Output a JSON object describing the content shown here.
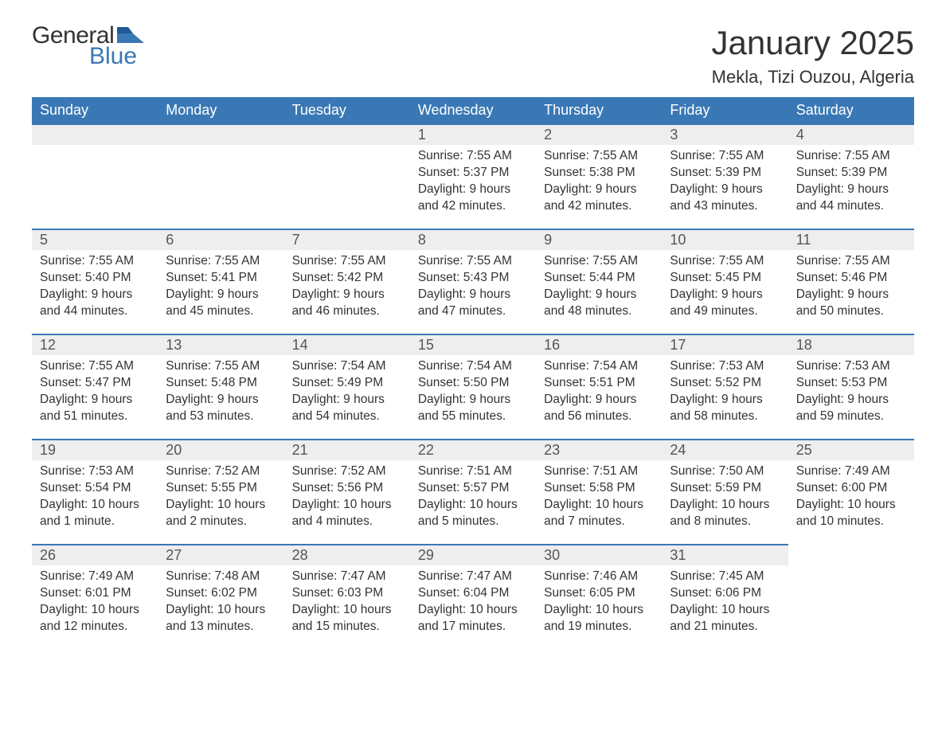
{
  "colors": {
    "header_bg": "#3a78b5",
    "header_text": "#ffffff",
    "daynum_bg": "#eeeeee",
    "row_border": "#3a78b5",
    "body_text": "#333333",
    "page_bg": "#ffffff",
    "logo_blue": "#3a78b5"
  },
  "typography": {
    "month_title_size_pt": 42,
    "location_size_pt": 22,
    "weekday_header_size_pt": 18,
    "daynum_size_pt": 18,
    "body_size_pt": 15.5
  },
  "logo": {
    "general": "General",
    "blue": "Blue"
  },
  "title": "January 2025",
  "location": "Mekla, Tizi Ouzou, Algeria",
  "weekdays": [
    "Sunday",
    "Monday",
    "Tuesday",
    "Wednesday",
    "Thursday",
    "Friday",
    "Saturday"
  ],
  "layout": {
    "columns": 7,
    "rows": 5,
    "first_day_column_index": 3
  },
  "weeks": [
    [
      null,
      null,
      null,
      {
        "n": "1",
        "sr": "Sunrise: 7:55 AM",
        "ss": "Sunset: 5:37 PM",
        "dl": "Daylight: 9 hours and 42 minutes."
      },
      {
        "n": "2",
        "sr": "Sunrise: 7:55 AM",
        "ss": "Sunset: 5:38 PM",
        "dl": "Daylight: 9 hours and 42 minutes."
      },
      {
        "n": "3",
        "sr": "Sunrise: 7:55 AM",
        "ss": "Sunset: 5:39 PM",
        "dl": "Daylight: 9 hours and 43 minutes."
      },
      {
        "n": "4",
        "sr": "Sunrise: 7:55 AM",
        "ss": "Sunset: 5:39 PM",
        "dl": "Daylight: 9 hours and 44 minutes."
      }
    ],
    [
      {
        "n": "5",
        "sr": "Sunrise: 7:55 AM",
        "ss": "Sunset: 5:40 PM",
        "dl": "Daylight: 9 hours and 44 minutes."
      },
      {
        "n": "6",
        "sr": "Sunrise: 7:55 AM",
        "ss": "Sunset: 5:41 PM",
        "dl": "Daylight: 9 hours and 45 minutes."
      },
      {
        "n": "7",
        "sr": "Sunrise: 7:55 AM",
        "ss": "Sunset: 5:42 PM",
        "dl": "Daylight: 9 hours and 46 minutes."
      },
      {
        "n": "8",
        "sr": "Sunrise: 7:55 AM",
        "ss": "Sunset: 5:43 PM",
        "dl": "Daylight: 9 hours and 47 minutes."
      },
      {
        "n": "9",
        "sr": "Sunrise: 7:55 AM",
        "ss": "Sunset: 5:44 PM",
        "dl": "Daylight: 9 hours and 48 minutes."
      },
      {
        "n": "10",
        "sr": "Sunrise: 7:55 AM",
        "ss": "Sunset: 5:45 PM",
        "dl": "Daylight: 9 hours and 49 minutes."
      },
      {
        "n": "11",
        "sr": "Sunrise: 7:55 AM",
        "ss": "Sunset: 5:46 PM",
        "dl": "Daylight: 9 hours and 50 minutes."
      }
    ],
    [
      {
        "n": "12",
        "sr": "Sunrise: 7:55 AM",
        "ss": "Sunset: 5:47 PM",
        "dl": "Daylight: 9 hours and 51 minutes."
      },
      {
        "n": "13",
        "sr": "Sunrise: 7:55 AM",
        "ss": "Sunset: 5:48 PM",
        "dl": "Daylight: 9 hours and 53 minutes."
      },
      {
        "n": "14",
        "sr": "Sunrise: 7:54 AM",
        "ss": "Sunset: 5:49 PM",
        "dl": "Daylight: 9 hours and 54 minutes."
      },
      {
        "n": "15",
        "sr": "Sunrise: 7:54 AM",
        "ss": "Sunset: 5:50 PM",
        "dl": "Daylight: 9 hours and 55 minutes."
      },
      {
        "n": "16",
        "sr": "Sunrise: 7:54 AM",
        "ss": "Sunset: 5:51 PM",
        "dl": "Daylight: 9 hours and 56 minutes."
      },
      {
        "n": "17",
        "sr": "Sunrise: 7:53 AM",
        "ss": "Sunset: 5:52 PM",
        "dl": "Daylight: 9 hours and 58 minutes."
      },
      {
        "n": "18",
        "sr": "Sunrise: 7:53 AM",
        "ss": "Sunset: 5:53 PM",
        "dl": "Daylight: 9 hours and 59 minutes."
      }
    ],
    [
      {
        "n": "19",
        "sr": "Sunrise: 7:53 AM",
        "ss": "Sunset: 5:54 PM",
        "dl": "Daylight: 10 hours and 1 minute."
      },
      {
        "n": "20",
        "sr": "Sunrise: 7:52 AM",
        "ss": "Sunset: 5:55 PM",
        "dl": "Daylight: 10 hours and 2 minutes."
      },
      {
        "n": "21",
        "sr": "Sunrise: 7:52 AM",
        "ss": "Sunset: 5:56 PM",
        "dl": "Daylight: 10 hours and 4 minutes."
      },
      {
        "n": "22",
        "sr": "Sunrise: 7:51 AM",
        "ss": "Sunset: 5:57 PM",
        "dl": "Daylight: 10 hours and 5 minutes."
      },
      {
        "n": "23",
        "sr": "Sunrise: 7:51 AM",
        "ss": "Sunset: 5:58 PM",
        "dl": "Daylight: 10 hours and 7 minutes."
      },
      {
        "n": "24",
        "sr": "Sunrise: 7:50 AM",
        "ss": "Sunset: 5:59 PM",
        "dl": "Daylight: 10 hours and 8 minutes."
      },
      {
        "n": "25",
        "sr": "Sunrise: 7:49 AM",
        "ss": "Sunset: 6:00 PM",
        "dl": "Daylight: 10 hours and 10 minutes."
      }
    ],
    [
      {
        "n": "26",
        "sr": "Sunrise: 7:49 AM",
        "ss": "Sunset: 6:01 PM",
        "dl": "Daylight: 10 hours and 12 minutes."
      },
      {
        "n": "27",
        "sr": "Sunrise: 7:48 AM",
        "ss": "Sunset: 6:02 PM",
        "dl": "Daylight: 10 hours and 13 minutes."
      },
      {
        "n": "28",
        "sr": "Sunrise: 7:47 AM",
        "ss": "Sunset: 6:03 PM",
        "dl": "Daylight: 10 hours and 15 minutes."
      },
      {
        "n": "29",
        "sr": "Sunrise: 7:47 AM",
        "ss": "Sunset: 6:04 PM",
        "dl": "Daylight: 10 hours and 17 minutes."
      },
      {
        "n": "30",
        "sr": "Sunrise: 7:46 AM",
        "ss": "Sunset: 6:05 PM",
        "dl": "Daylight: 10 hours and 19 minutes."
      },
      {
        "n": "31",
        "sr": "Sunrise: 7:45 AM",
        "ss": "Sunset: 6:06 PM",
        "dl": "Daylight: 10 hours and 21 minutes."
      },
      null
    ]
  ]
}
